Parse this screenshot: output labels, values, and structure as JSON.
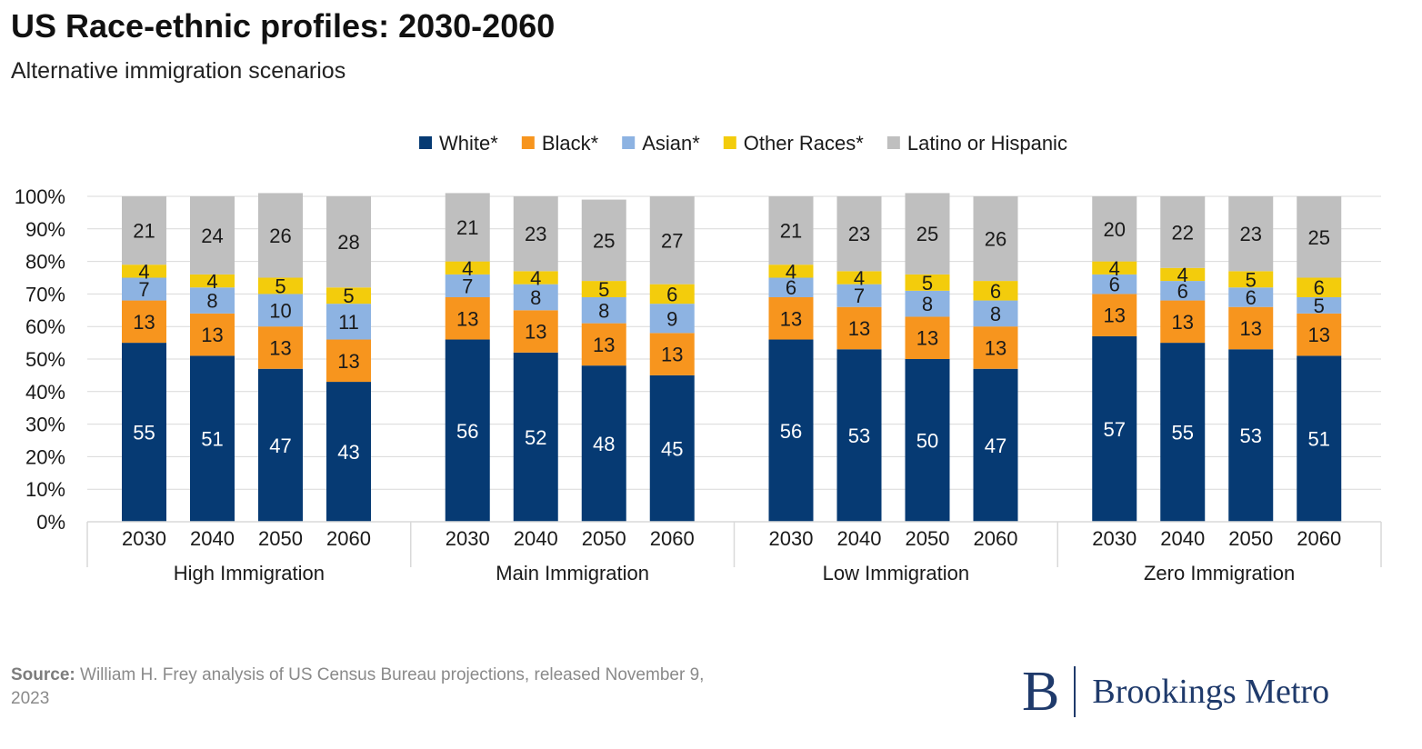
{
  "title": "US Race-ethnic profiles: 2030-2060",
  "subtitle": "Alternative immigration scenarios",
  "source_label": "Source:",
  "source_text": "William H. Frey analysis of US Census Bureau projections, released November 9, 2023",
  "brand": {
    "mark": "B",
    "name": "Brookings Metro"
  },
  "chart_data": {
    "type": "bar",
    "stacked": true,
    "legend_position": "top",
    "grid": true,
    "ylim": [
      0,
      100
    ],
    "y_ticks": [
      "0%",
      "10%",
      "20%",
      "30%",
      "40%",
      "50%",
      "60%",
      "70%",
      "80%",
      "90%",
      "100%"
    ],
    "groups": [
      "High Immigration",
      "Main Immigration",
      "Low Immigration",
      "Zero Immigration"
    ],
    "categories": [
      "2030",
      "2040",
      "2050",
      "2060"
    ],
    "series": [
      {
        "name": "White*",
        "color": "#063a73",
        "values": [
          [
            55,
            51,
            47,
            43
          ],
          [
            56,
            52,
            48,
            45
          ],
          [
            56,
            53,
            50,
            47
          ],
          [
            57,
            55,
            53,
            51
          ]
        ]
      },
      {
        "name": "Black*",
        "color": "#f7951e",
        "values": [
          [
            13,
            13,
            13,
            13
          ],
          [
            13,
            13,
            13,
            13
          ],
          [
            13,
            13,
            13,
            13
          ],
          [
            13,
            13,
            13,
            13
          ]
        ]
      },
      {
        "name": "Asian*",
        "color": "#8db3e2",
        "values": [
          [
            7,
            8,
            10,
            11
          ],
          [
            7,
            8,
            8,
            9
          ],
          [
            6,
            7,
            8,
            8
          ],
          [
            6,
            6,
            6,
            5
          ]
        ]
      },
      {
        "name": "Other Races*",
        "color": "#f3cc0c",
        "values": [
          [
            4,
            4,
            5,
            5
          ],
          [
            4,
            4,
            5,
            6
          ],
          [
            4,
            4,
            5,
            6
          ],
          [
            4,
            4,
            5,
            6
          ]
        ]
      },
      {
        "name": "Latino or Hispanic",
        "color": "#bfbfbf",
        "values": [
          [
            21,
            24,
            26,
            28
          ],
          [
            21,
            23,
            25,
            27
          ],
          [
            21,
            23,
            25,
            26
          ],
          [
            20,
            22,
            23,
            25
          ]
        ]
      }
    ]
  }
}
